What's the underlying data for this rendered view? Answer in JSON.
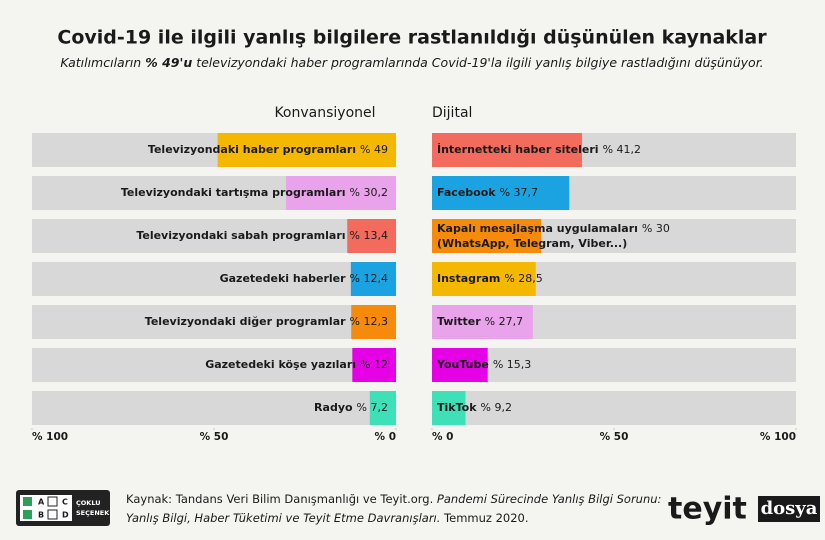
{
  "title": "Covid-19 ile ilgili yanlış bilgilere rastlanıldığı düşünülen kaynaklar",
  "subtitle": [
    "Katılımcıların ",
    "% 49'u",
    " televizyondaki haber programlarında Covid-19'la ilgili yanlış bilgiye rastladığını düşünüyor."
  ],
  "chart_data": [
    {
      "type": "bar",
      "orientation": "horizontal",
      "title": "Konvansiyonel",
      "categories": [
        "Televizyondaki haber programları",
        "Televizyondaki tartışma programları",
        "Televizyondaki sabah programları",
        "Gazetedeki haberler",
        "Televizyondaki diğer programlar",
        "Gazetedeki köşe yazıları",
        "Radyo"
      ],
      "values": [
        49,
        30.2,
        13.4,
        12.4,
        12.3,
        12,
        7.2
      ],
      "value_labels": [
        "% 49",
        "% 30,2",
        "% 13,4",
        "% 12,4",
        "% 12,3",
        "% 12",
        "% 7,2"
      ],
      "colors": [
        "#f5b800",
        "#e9a3ea",
        "#f36b5c",
        "#1aa3e0",
        "#f58a0b",
        "#e600e6",
        "#3ee0b8"
      ],
      "xlim": [
        100,
        0
      ],
      "xticks": [
        {
          "value": 100,
          "label": "% 100"
        },
        {
          "value": 50,
          "label": "% 50"
        },
        {
          "value": 0,
          "label": "% 0"
        }
      ]
    },
    {
      "type": "bar",
      "orientation": "horizontal",
      "title": "Dijital",
      "categories": [
        "İnternetteki haber siteleri",
        "Facebook",
        "Kapalı mesajlaşma uygulamaları",
        "Instagram",
        "Twitter",
        "YouTube",
        "TikTok"
      ],
      "category_notes": [
        null,
        null,
        "(WhatsApp, Telegram, Viber...)",
        null,
        null,
        null,
        null
      ],
      "values": [
        41.2,
        37.7,
        30,
        28.5,
        27.7,
        15.3,
        9.2
      ],
      "value_labels": [
        "% 41,2",
        "% 37,7",
        "% 30",
        "% 28,5",
        "% 27,7",
        "% 15,3",
        "% 9,2"
      ],
      "colors": [
        "#f36b5c",
        "#1aa3e0",
        "#f58a0b",
        "#f5b800",
        "#e9a3ea",
        "#e600e6",
        "#3ee0b8"
      ],
      "xlim": [
        0,
        100
      ],
      "xticks": [
        {
          "value": 0,
          "label": "% 0"
        },
        {
          "value": 50,
          "label": "% 50"
        },
        {
          "value": 100,
          "label": "% 100"
        }
      ]
    }
  ],
  "footer": {
    "badge": {
      "letters": [
        "A",
        "B",
        "C",
        "D"
      ],
      "label": [
        "ÇOKLU",
        "SEÇENEK"
      ]
    },
    "source": [
      "Kaynak: Tandans Veri Bilim Danışmanlığı ve Teyit.org. ",
      "Pandemi Sürecinde Yanlış Bilgi Sorunu:",
      "Yanlış Bilgi, Haber Tüketimi ve Teyit Etme Davranışları.",
      " Temmuz 2020."
    ],
    "brand": [
      "teyit",
      "dosya"
    ]
  }
}
